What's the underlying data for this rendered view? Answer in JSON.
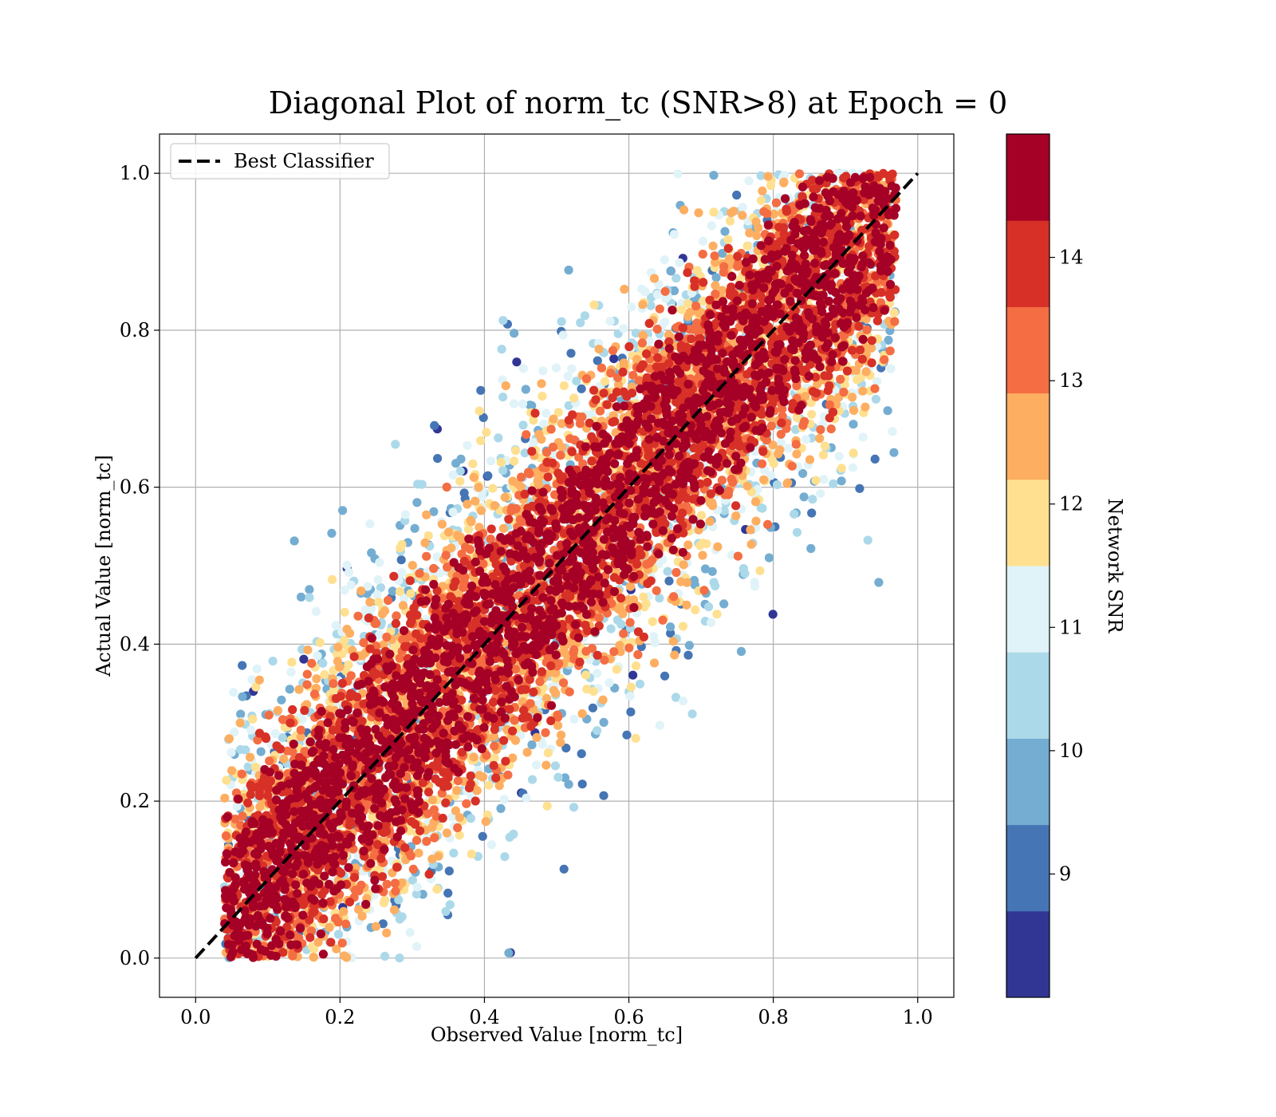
{
  "chart_data": {
    "type": "scatter",
    "title": "Diagonal Plot of norm_tc (SNR>8) at Epoch = 0",
    "xlabel": "Observed Value [norm_tc]",
    "ylabel": "Actual Value [norm_tc]",
    "xlim": [
      -0.05,
      1.05
    ],
    "ylim": [
      -0.05,
      1.05
    ],
    "xticks": [
      "0.0",
      "0.2",
      "0.4",
      "0.6",
      "0.8",
      "1.0"
    ],
    "yticks": [
      "0.0",
      "0.2",
      "0.4",
      "0.6",
      "0.8",
      "1.0"
    ],
    "grid": true,
    "legend": {
      "position": "top-left",
      "entries": [
        "Best Classifier"
      ]
    },
    "reference_line": {
      "name": "Best Classifier",
      "x": [
        0.0,
        1.0
      ],
      "y": [
        0.0,
        1.0
      ],
      "style": "dashed",
      "color": "#000000"
    },
    "colorbar": {
      "label": "Network SNR",
      "range": [
        8,
        15
      ],
      "ticks": [
        "9",
        "10",
        "11",
        "12",
        "13",
        "14"
      ],
      "tick_values": [
        9,
        10,
        11,
        12,
        13,
        14
      ],
      "colors": [
        "#313695",
        "#4575b4",
        "#74add1",
        "#abd9e9",
        "#e0f3f8",
        "#fee090",
        "#fdae61",
        "#f46d43",
        "#d73027",
        "#a50026"
      ]
    },
    "scatter_description": {
      "n_points_approx": 9000,
      "center_relation": "actual ≈ observed",
      "band_halfwidth_high_snr": 0.12,
      "band_halfwidth_low_snr": 0.45,
      "observed_range": [
        0.04,
        0.97
      ]
    }
  }
}
